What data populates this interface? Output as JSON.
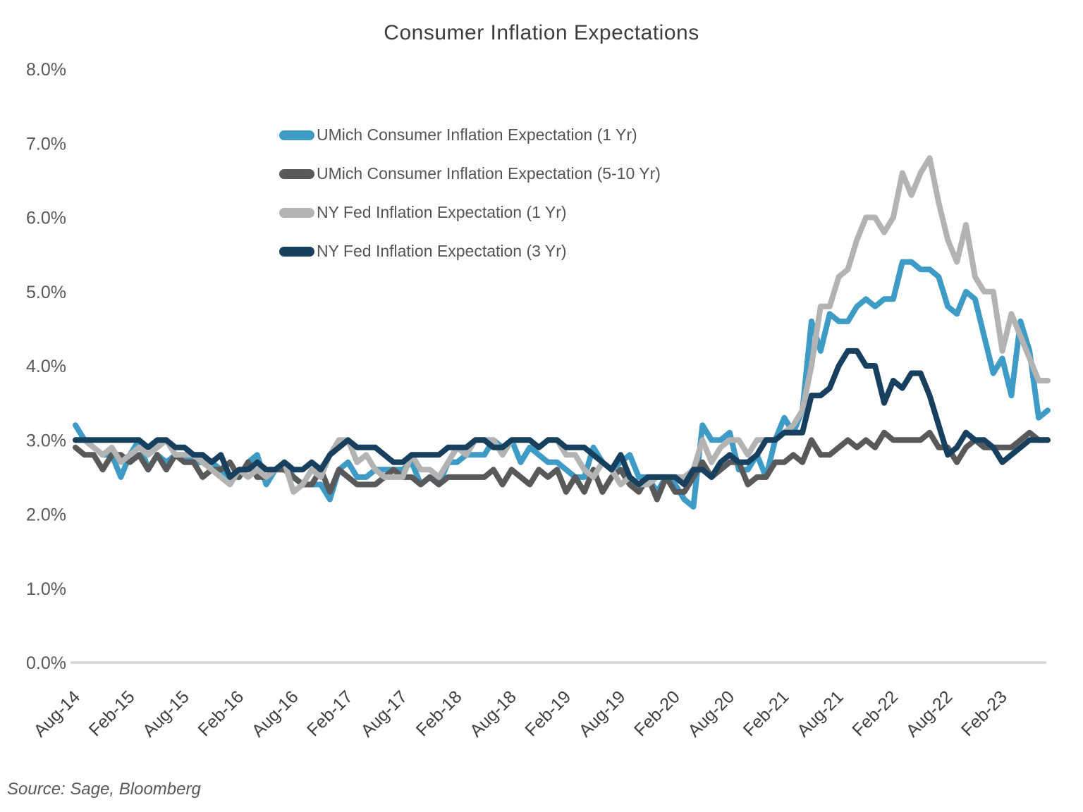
{
  "chart_data": {
    "type": "line",
    "title": "Consumer Inflation Expectations",
    "source_note": "Source: Sage, Bloomberg",
    "ylabel": "",
    "xlabel": "",
    "y_min": 0,
    "y_max": 8,
    "grid": "off",
    "legend_position": "inside-top-left",
    "y_tick_labels": [
      "0.0%",
      "1.0%",
      "2.0%",
      "3.0%",
      "4.0%",
      "5.0%",
      "6.0%",
      "7.0%",
      "8.0%"
    ],
    "x_tick_labels": [
      "Aug-14",
      "Feb-15",
      "Aug-15",
      "Feb-16",
      "Aug-16",
      "Feb-17",
      "Aug-17",
      "Feb-18",
      "Aug-18",
      "Feb-19",
      "Aug-19",
      "Feb-20",
      "Aug-20",
      "Feb-21",
      "Aug-21",
      "Feb-22",
      "Aug-22",
      "Feb-23"
    ],
    "x_tick_interval": 6,
    "x_start_month": "Aug-2014",
    "x_end_month": "Jul-2023",
    "axis_line_color": "#d8d8d8",
    "series": [
      {
        "name": "UMich Consumer Inflation Expectation (1 Yr)",
        "color": "#3d9bc5",
        "values": [
          3.2,
          3.0,
          2.9,
          2.8,
          2.8,
          2.5,
          2.8,
          3.0,
          2.6,
          2.8,
          2.7,
          2.8,
          2.8,
          2.7,
          2.7,
          2.7,
          2.6,
          2.5,
          2.5,
          2.7,
          2.8,
          2.4,
          2.6,
          2.7,
          2.5,
          2.4,
          2.4,
          2.4,
          2.2,
          2.6,
          2.7,
          2.5,
          2.5,
          2.6,
          2.6,
          2.6,
          2.6,
          2.7,
          2.4,
          2.5,
          2.4,
          2.7,
          2.7,
          2.8,
          2.8,
          2.8,
          3.0,
          2.9,
          3.0,
          2.7,
          2.9,
          2.8,
          2.7,
          2.7,
          2.6,
          2.5,
          2.5,
          2.9,
          2.7,
          2.6,
          2.7,
          2.8,
          2.5,
          2.5,
          2.3,
          2.5,
          2.4,
          2.2,
          2.1,
          3.2,
          3.0,
          3.0,
          3.1,
          2.6,
          2.6,
          2.8,
          2.5,
          3.0,
          3.3,
          3.1,
          3.4,
          4.6,
          4.2,
          4.7,
          4.6,
          4.6,
          4.8,
          4.9,
          4.8,
          4.9,
          4.9,
          5.4,
          5.4,
          5.3,
          5.3,
          5.2,
          4.8,
          4.7,
          5.0,
          4.9,
          4.4,
          3.9,
          4.1,
          3.6,
          4.6,
          4.2,
          3.3,
          3.4
        ]
      },
      {
        "name": "UMich Consumer Inflation Expectation (5-10 Yr)",
        "color": "#58595b",
        "values": [
          2.9,
          2.8,
          2.8,
          2.6,
          2.8,
          2.8,
          2.7,
          2.8,
          2.6,
          2.8,
          2.6,
          2.8,
          2.7,
          2.7,
          2.5,
          2.6,
          2.6,
          2.7,
          2.5,
          2.7,
          2.5,
          2.5,
          2.6,
          2.6,
          2.5,
          2.4,
          2.4,
          2.6,
          2.3,
          2.6,
          2.5,
          2.4,
          2.4,
          2.4,
          2.5,
          2.6,
          2.5,
          2.5,
          2.4,
          2.5,
          2.4,
          2.5,
          2.5,
          2.5,
          2.5,
          2.5,
          2.6,
          2.4,
          2.6,
          2.5,
          2.4,
          2.6,
          2.5,
          2.6,
          2.3,
          2.5,
          2.3,
          2.6,
          2.3,
          2.5,
          2.6,
          2.4,
          2.3,
          2.5,
          2.2,
          2.5,
          2.3,
          2.3,
          2.5,
          2.7,
          2.5,
          2.6,
          2.7,
          2.7,
          2.4,
          2.5,
          2.5,
          2.7,
          2.7,
          2.8,
          2.7,
          3.0,
          2.8,
          2.8,
          2.9,
          3.0,
          2.9,
          3.0,
          2.9,
          3.1,
          3.0,
          3.0,
          3.0,
          3.0,
          3.1,
          2.9,
          2.9,
          2.7,
          2.9,
          3.0,
          2.9,
          2.9,
          2.9,
          2.9,
          3.0,
          3.1,
          3.0,
          3.0
        ]
      },
      {
        "name": "NY Fed Inflation Expectation (1 Yr)",
        "color": "#b3b3b3",
        "values": [
          3.0,
          3.0,
          2.9,
          2.8,
          2.9,
          2.7,
          2.8,
          2.9,
          2.8,
          2.9,
          3.0,
          2.8,
          2.8,
          2.8,
          2.7,
          2.6,
          2.5,
          2.4,
          2.6,
          2.5,
          2.6,
          2.5,
          2.6,
          2.7,
          2.3,
          2.4,
          2.6,
          2.5,
          2.8,
          3.0,
          3.0,
          2.7,
          2.8,
          2.6,
          2.5,
          2.5,
          2.5,
          2.8,
          2.6,
          2.6,
          2.5,
          2.7,
          2.9,
          2.8,
          3.0,
          3.0,
          3.0,
          2.8,
          3.0,
          3.0,
          3.0,
          2.9,
          3.0,
          3.0,
          2.8,
          2.8,
          2.6,
          2.5,
          2.7,
          2.6,
          2.4,
          2.5,
          2.4,
          2.4,
          2.5,
          2.5,
          2.5,
          2.5,
          2.6,
          3.0,
          2.7,
          2.9,
          3.0,
          3.0,
          2.8,
          3.0,
          3.0,
          3.0,
          3.1,
          3.2,
          3.4,
          4.0,
          4.8,
          4.8,
          5.2,
          5.3,
          5.7,
          6.0,
          6.0,
          5.8,
          6.0,
          6.6,
          6.3,
          6.6,
          6.8,
          6.2,
          5.7,
          5.4,
          5.9,
          5.2,
          5.0,
          5.0,
          4.2,
          4.7,
          4.4,
          4.1,
          3.8,
          3.8
        ]
      },
      {
        "name": "NY Fed Inflation Expectation (3 Yr)",
        "color": "#17405e",
        "values": [
          3.0,
          3.0,
          3.0,
          3.0,
          3.0,
          3.0,
          3.0,
          3.0,
          2.9,
          3.0,
          3.0,
          2.9,
          2.9,
          2.8,
          2.8,
          2.7,
          2.8,
          2.5,
          2.6,
          2.6,
          2.7,
          2.6,
          2.6,
          2.7,
          2.6,
          2.6,
          2.7,
          2.6,
          2.8,
          2.9,
          3.0,
          2.9,
          2.9,
          2.9,
          2.8,
          2.7,
          2.7,
          2.8,
          2.8,
          2.8,
          2.8,
          2.9,
          2.9,
          2.9,
          3.0,
          3.0,
          2.9,
          2.9,
          3.0,
          3.0,
          3.0,
          2.9,
          3.0,
          3.0,
          2.9,
          2.9,
          2.9,
          2.8,
          2.7,
          2.6,
          2.8,
          2.5,
          2.4,
          2.5,
          2.5,
          2.5,
          2.5,
          2.4,
          2.6,
          2.6,
          2.5,
          2.7,
          2.8,
          2.7,
          2.7,
          2.8,
          3.0,
          3.0,
          3.1,
          3.1,
          3.1,
          3.6,
          3.6,
          3.7,
          4.0,
          4.2,
          4.2,
          4.0,
          4.0,
          3.5,
          3.8,
          3.7,
          3.9,
          3.9,
          3.6,
          3.2,
          2.8,
          2.9,
          3.1,
          3.0,
          3.0,
          2.9,
          2.7,
          2.8,
          2.9,
          3.0,
          3.0,
          3.0
        ]
      }
    ]
  }
}
